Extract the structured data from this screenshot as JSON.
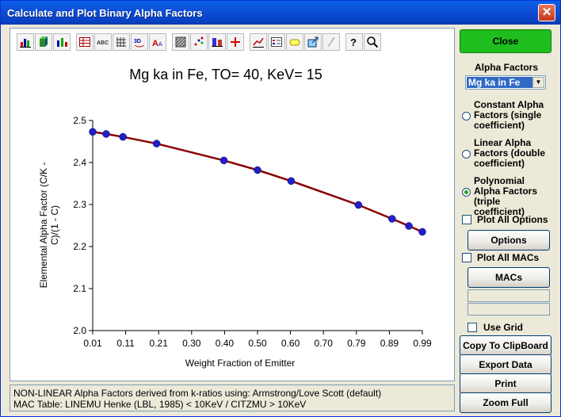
{
  "window": {
    "title": "Calculate and Plot Binary Alpha Factors",
    "close_glyph": "✕"
  },
  "toolbar": {
    "icons": [
      "bar-chart",
      "3d-bar",
      "stacked-bar",
      "table",
      "abc-labels",
      "grid-data",
      "3d-rotate",
      "text-size",
      "pattern",
      "scatter-style",
      "grid-lines",
      "crosshair",
      "line-style",
      "legend",
      "label",
      "export",
      "edit-pen",
      "help",
      "zoom"
    ]
  },
  "chart_data": {
    "type": "line",
    "title": "Mg ka in Fe, TO= 40, KeV= 15",
    "xlabel": "Weight Fraction of Emitter",
    "ylabel": "Elemental Alpha Factor (C/K - C)/(1 - C)",
    "xlim": [
      0.01,
      0.99
    ],
    "ylim": [
      2.0,
      2.5
    ],
    "x_ticks": [
      "0.01",
      "0.11",
      "0.21",
      "0.30",
      "0.40",
      "0.50",
      "0.60",
      "0.70",
      "0.79",
      "0.89",
      "0.99"
    ],
    "y_ticks": [
      "2.0",
      "2.1",
      "2.2",
      "2.3",
      "2.4",
      "2.5"
    ],
    "grid": false,
    "series": [
      {
        "color": "#8B0000",
        "marker_color": "#2020C8",
        "x": [
          0.01,
          0.05,
          0.1,
          0.2,
          0.4,
          0.5,
          0.6,
          0.8,
          0.9,
          0.95,
          0.99
        ],
        "y": [
          2.473,
          2.468,
          2.461,
          2.445,
          2.405,
          2.382,
          2.356,
          2.299,
          2.266,
          2.249,
          2.235
        ]
      }
    ]
  },
  "status": {
    "line1": "NON-LINEAR Alpha Factors derived from k-ratios using: Armstrong/Love Scott (default)",
    "line2": "MAC Table: LINEMU   Henke (LBL, 1985) < 10KeV / CITZMU > 10KeV"
  },
  "panel": {
    "close_label": "Close",
    "alpha_factors_label": "Alpha Factors",
    "alpha_select_value": "Mg ka in Fe",
    "constant_label": "Constant Alpha Factors (single coefficient)",
    "linear_label": "Linear Alpha Factors (double coefficient)",
    "polynomial_label": "Polynomial Alpha Factors (triple coefficient)",
    "selected_option": "polynomial",
    "plot_all_options_label": "Plot All Options",
    "options_label": "Options",
    "plot_all_macs_label": "Plot All MACs",
    "macs_label": "MACs",
    "use_grid_label": "Use Grid",
    "copy_label": "Copy To ClipBoard",
    "export_label": "Export Data",
    "print_label": "Print",
    "zoom_label": "Zoom Full"
  }
}
